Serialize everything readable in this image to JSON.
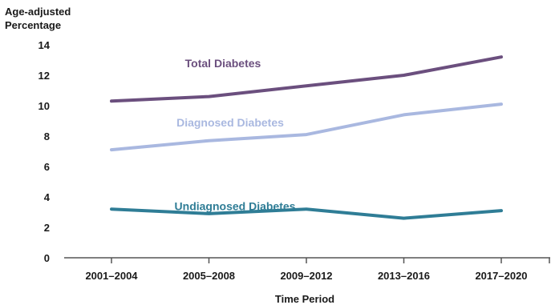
{
  "chart_data": {
    "type": "line",
    "title": "",
    "ylabel_lines": [
      "Age-adjusted",
      "Percentage"
    ],
    "xlabel": "Time Period",
    "categories": [
      "2001–2004",
      "2005–2008",
      "2009–2012",
      "2013–2016",
      "2017–2020"
    ],
    "ylim": [
      0,
      14
    ],
    "yticks": [
      0,
      2,
      4,
      6,
      8,
      10,
      12,
      14
    ],
    "grid": false,
    "legend": "inline-labels",
    "series": [
      {
        "name": "Total Diabetes",
        "color": "#6b4f7e",
        "values": [
          10.3,
          10.6,
          11.3,
          12.0,
          13.2
        ]
      },
      {
        "name": "Diagnosed Diabetes",
        "color": "#a9b8e0",
        "values": [
          7.1,
          7.7,
          8.1,
          9.4,
          10.1
        ]
      },
      {
        "name": "Undiagnosed Diabetes",
        "color": "#2f7d96",
        "values": [
          3.2,
          2.9,
          3.2,
          2.6,
          3.1
        ]
      }
    ]
  }
}
